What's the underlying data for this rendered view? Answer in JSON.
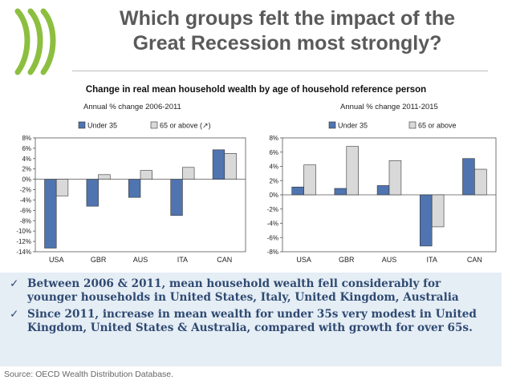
{
  "header": {
    "title_line1": "Which groups felt the impact of the",
    "title_line2": "Great Recession most strongly?",
    "subtitle": "Change in real mean household wealth by age of household reference person"
  },
  "colors": {
    "under35": "#4f74b0",
    "over65": "#d9d9d9",
    "logo": "#8cbf3f",
    "title": "#5a5a5a",
    "bullet_text": "#2f4a72",
    "bullet_bg": "#e5edf5"
  },
  "chart_data": [
    {
      "type": "bar",
      "title": "Annual % change 2006-2011",
      "categories": [
        "USA",
        "GBR",
        "AUS",
        "ITA",
        "CAN"
      ],
      "series": [
        {
          "name": "Under 35",
          "values": [
            -13.3,
            -5.2,
            -3.5,
            -7.0,
            5.7
          ]
        },
        {
          "name": "65 or above (↗)",
          "values": [
            -3.2,
            0.9,
            1.7,
            2.3,
            5.0
          ]
        }
      ],
      "ylim": [
        -14,
        8
      ],
      "yticks": [
        8,
        6,
        4,
        2,
        0,
        -2,
        -4,
        -6,
        -8,
        -10,
        -12,
        -14
      ],
      "ytick_labels": [
        "8%",
        "6%",
        "4%",
        "2%",
        "0%",
        "-2%",
        "-4%",
        "-6%",
        "-8%",
        "-10%",
        "-12%",
        "-14%"
      ],
      "legend": "top",
      "grid": false
    },
    {
      "type": "bar",
      "title": "Annual % change 2011-2015",
      "categories": [
        "USA",
        "GBR",
        "AUS",
        "ITA",
        "CAN"
      ],
      "series": [
        {
          "name": "Under 35",
          "values": [
            1.1,
            0.9,
            1.3,
            -7.2,
            5.1
          ]
        },
        {
          "name": "65 or above",
          "values": [
            4.2,
            6.8,
            4.8,
            -4.5,
            3.6
          ]
        }
      ],
      "ylim": [
        -8,
        8
      ],
      "yticks": [
        8,
        6,
        4,
        2,
        0,
        -2,
        -4,
        -6,
        -8
      ],
      "ytick_labels": [
        "8%",
        "6%",
        "4%",
        "2%",
        "0%",
        "-2%",
        "-4%",
        "-6%",
        "-8%"
      ],
      "legend": "top",
      "grid": false
    }
  ],
  "bullets": [
    "Between 2006 & 2011, mean household wealth fell considerably for younger households in United States, Italy, United Kingdom, Australia",
    "Since 2011, increase in mean wealth for under 35s very modest in United Kingdom, United States & Australia, compared with growth for over 65s."
  ],
  "check_glyph": "✓",
  "source": "Source: OECD Wealth Distribution Database."
}
